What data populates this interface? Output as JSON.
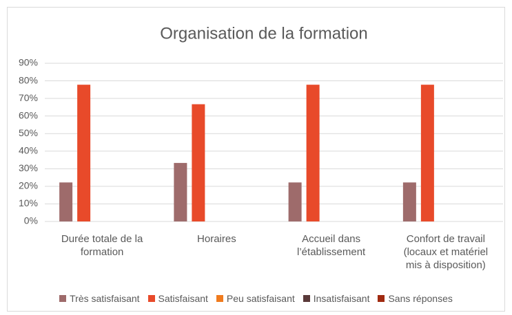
{
  "chart_data": {
    "type": "bar",
    "title": "Organisation de la formation",
    "categories": [
      "Durée totale de la formation",
      "Horaires",
      "Accueil dans l’établissement",
      "Confort de travail (locaux et matériel mis à disposition)"
    ],
    "series": [
      {
        "name": "Très satisfaisant",
        "color": "#9e6b6b",
        "values": [
          22.2,
          33.3,
          22.2,
          22.2
        ]
      },
      {
        "name": "Satisfaisant",
        "color": "#e84a2a",
        "values": [
          77.8,
          66.7,
          77.8,
          77.8
        ]
      },
      {
        "name": "Peu satisfaisant",
        "color": "#f07b1e",
        "values": [
          0,
          0,
          0,
          0
        ]
      },
      {
        "name": "Insatisfaisant",
        "color": "#5a3a3a",
        "values": [
          0,
          0,
          0,
          0
        ]
      },
      {
        "name": "Sans réponses",
        "color": "#a02a10",
        "values": [
          0,
          0,
          0,
          0
        ]
      }
    ],
    "ylim": [
      0,
      90
    ],
    "yticks": [
      {
        "value": 0,
        "label": "0%"
      },
      {
        "value": 10,
        "label": "10%"
      },
      {
        "value": 20,
        "label": "20%"
      },
      {
        "value": 30,
        "label": "30%"
      },
      {
        "value": 40,
        "label": "40%"
      },
      {
        "value": 50,
        "label": "50%"
      },
      {
        "value": 60,
        "label": "60%"
      },
      {
        "value": 70,
        "label": "70%"
      },
      {
        "value": 80,
        "label": "80%"
      },
      {
        "value": 90,
        "label": "90%"
      }
    ],
    "grid": true,
    "legend": "bottom"
  }
}
